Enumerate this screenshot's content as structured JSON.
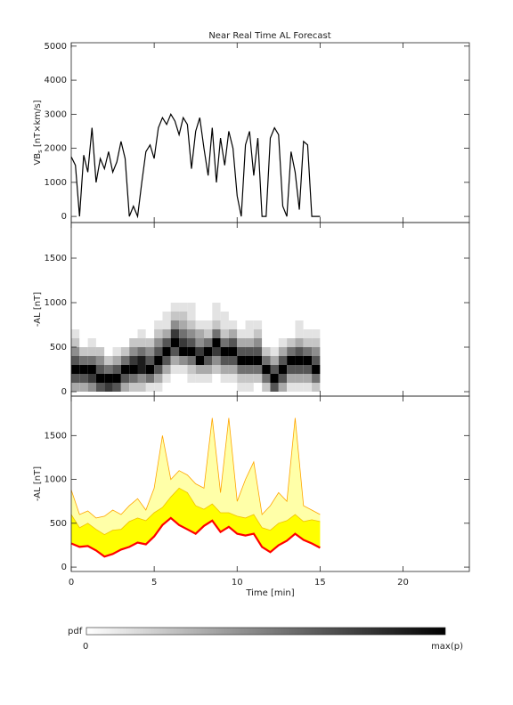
{
  "chart_data": [
    {
      "type": "line",
      "title": "Near Real Time AL Forecast",
      "ylabel": {
        "main": "VB",
        "sub": "s",
        "unit": " [nT×km/s]"
      },
      "xlim": [
        0,
        24
      ],
      "xticks": [
        0,
        5,
        10,
        15,
        20
      ],
      "ylim": [
        -180,
        5100
      ],
      "yticks": [
        0,
        1000,
        2000,
        3000,
        4000,
        5000
      ],
      "x": [
        0,
        0.25,
        0.5,
        0.75,
        1,
        1.25,
        1.5,
        1.75,
        2,
        2.25,
        2.5,
        2.75,
        3,
        3.25,
        3.5,
        3.75,
        4,
        4.25,
        4.5,
        4.75,
        5,
        5.25,
        5.5,
        5.75,
        6,
        6.25,
        6.5,
        6.75,
        7,
        7.25,
        7.5,
        7.75,
        8,
        8.25,
        8.5,
        8.75,
        9,
        9.25,
        9.5,
        9.75,
        10,
        10.25,
        10.5,
        10.75,
        11,
        11.25,
        11.5,
        11.75,
        12,
        12.25,
        12.5,
        12.75,
        13,
        13.25,
        13.5,
        13.75,
        14,
        14.25,
        14.5,
        14.75,
        15
      ],
      "series": [
        {
          "color": "#000000",
          "values": [
            1750,
            1500,
            0,
            1800,
            1300,
            2600,
            1000,
            1700,
            1400,
            1900,
            1300,
            1600,
            2200,
            1700,
            0,
            300,
            0,
            1000,
            1900,
            2100,
            1700,
            2600,
            2900,
            2700,
            3000,
            2800,
            2400,
            2900,
            2700,
            1400,
            2500,
            2900,
            2000,
            1200,
            2600,
            1000,
            2300,
            1500,
            2500,
            2000,
            600,
            0,
            2100,
            2500,
            1200,
            2300,
            0,
            0,
            2300,
            2600,
            2400,
            300,
            0,
            1900,
            1300,
            200,
            2200,
            2100,
            0,
            0,
            0
          ]
        }
      ]
    },
    {
      "type": "heatmap",
      "ylabel": "-AL [nT]",
      "xlim": [
        0,
        24
      ],
      "xticks": [
        0,
        5,
        10,
        15,
        20
      ],
      "ylim": [
        -50,
        1900
      ],
      "yticks": [
        0,
        500,
        1000,
        1500
      ],
      "xbins": [
        0,
        0.5,
        1,
        1.5,
        2,
        2.5,
        3,
        3.5,
        4,
        4.5,
        5,
        5.5,
        6,
        6.5,
        7,
        7.5,
        8,
        8.5,
        9,
        9.5,
        10,
        10.5,
        11,
        11.5,
        12,
        12.5,
        13,
        13.5,
        14,
        14.5,
        15
      ],
      "ybins": [
        0,
        100,
        200,
        300,
        400,
        500,
        600,
        700,
        800,
        900,
        1000
      ],
      "z": [
        [
          3,
          6,
          9,
          6,
          4,
          2,
          1,
          0,
          0,
          0
        ],
        [
          3,
          6,
          9,
          5,
          2,
          0,
          0,
          0,
          0,
          0
        ],
        [
          4,
          7,
          9,
          5,
          2,
          1,
          0,
          0,
          0,
          0
        ],
        [
          6,
          9,
          6,
          4,
          2,
          0,
          0,
          0,
          0,
          0
        ],
        [
          7,
          9,
          5,
          2,
          0,
          0,
          0,
          0,
          0,
          0
        ],
        [
          6,
          9,
          6,
          3,
          1,
          0,
          0,
          0,
          0,
          0
        ],
        [
          3,
          6,
          9,
          5,
          2,
          0,
          0,
          0,
          0,
          0
        ],
        [
          2,
          5,
          9,
          7,
          4,
          2,
          0,
          0,
          0,
          0
        ],
        [
          2,
          4,
          8,
          8,
          5,
          2,
          1,
          0,
          0,
          0
        ],
        [
          1,
          5,
          9,
          6,
          4,
          2,
          0,
          0,
          0,
          0
        ],
        [
          1,
          3,
          6,
          9,
          6,
          4,
          2,
          1,
          0,
          0
        ],
        [
          0,
          1,
          3,
          6,
          9,
          6,
          3,
          1,
          1,
          0
        ],
        [
          0,
          0,
          1,
          3,
          6,
          9,
          7,
          4,
          2,
          1
        ],
        [
          0,
          0,
          1,
          4,
          9,
          7,
          5,
          3,
          2,
          1
        ],
        [
          0,
          1,
          2,
          5,
          9,
          6,
          4,
          2,
          1,
          1
        ],
        [
          0,
          1,
          3,
          9,
          7,
          4,
          3,
          1,
          0,
          0
        ],
        [
          0,
          1,
          3,
          6,
          9,
          5,
          2,
          1,
          0,
          0
        ],
        [
          0,
          0,
          2,
          4,
          7,
          9,
          5,
          2,
          1,
          1
        ],
        [
          0,
          1,
          3,
          6,
          9,
          5,
          2,
          1,
          1,
          0
        ],
        [
          0,
          1,
          3,
          6,
          9,
          6,
          3,
          1,
          0,
          0
        ],
        [
          1,
          2,
          5,
          9,
          6,
          3,
          1,
          0,
          0,
          0
        ],
        [
          1,
          2,
          5,
          9,
          6,
          3,
          1,
          1,
          0,
          0
        ],
        [
          0,
          2,
          5,
          9,
          6,
          4,
          2,
          1,
          0,
          0
        ],
        [
          2,
          5,
          9,
          5,
          2,
          0,
          0,
          0,
          0,
          0
        ],
        [
          6,
          9,
          6,
          3,
          1,
          0,
          0,
          0,
          0,
          0
        ],
        [
          3,
          6,
          9,
          6,
          3,
          1,
          0,
          0,
          0,
          0
        ],
        [
          1,
          3,
          6,
          9,
          5,
          2,
          0,
          0,
          0,
          0
        ],
        [
          1,
          3,
          6,
          9,
          6,
          3,
          1,
          1,
          0,
          0
        ],
        [
          1,
          3,
          6,
          9,
          5,
          2,
          1,
          0,
          0,
          0
        ],
        [
          2,
          5,
          9,
          6,
          4,
          2,
          1,
          0,
          0,
          0
        ]
      ]
    },
    {
      "type": "band",
      "ylabel": "-AL [nT]",
      "xlabel": "Time [min]",
      "xlim": [
        0,
        24
      ],
      "xticks": [
        0,
        5,
        10,
        15,
        20
      ],
      "ylim": [
        -50,
        1950
      ],
      "yticks": [
        0,
        500,
        1000,
        1500
      ],
      "x": [
        0,
        0.5,
        1,
        1.5,
        2,
        2.5,
        3,
        3.5,
        4,
        4.5,
        5,
        5.5,
        6,
        6.5,
        7,
        7.5,
        8,
        8.5,
        9,
        9.5,
        10,
        10.5,
        11,
        11.5,
        12,
        12.5,
        13,
        13.5,
        14,
        14.5,
        15
      ],
      "series": [
        {
          "color": "#ff0000",
          "values": [
            270,
            230,
            240,
            190,
            120,
            150,
            200,
            230,
            280,
            260,
            350,
            480,
            560,
            480,
            430,
            380,
            470,
            530,
            400,
            460,
            380,
            360,
            380,
            230,
            170,
            250,
            300,
            380,
            310,
            270,
            220
          ]
        },
        {
          "color": "#ffff00",
          "line_color": "#f0c000",
          "values": [
            600,
            450,
            500,
            430,
            370,
            420,
            430,
            520,
            560,
            530,
            620,
            680,
            800,
            900,
            850,
            700,
            660,
            720,
            620,
            620,
            580,
            560,
            600,
            450,
            420,
            500,
            530,
            600,
            520,
            540,
            520
          ]
        },
        {
          "color": "#ffffa8",
          "line_color": "#ffa500",
          "values": [
            880,
            600,
            640,
            560,
            580,
            650,
            600,
            700,
            780,
            650,
            900,
            1500,
            1000,
            1100,
            1050,
            950,
            900,
            1700,
            850,
            1700,
            750,
            1000,
            1200,
            600,
            700,
            850,
            750,
            1700,
            700,
            650,
            600
          ]
        }
      ]
    }
  ],
  "colorbar": {
    "label": "pdf",
    "min_label": "0",
    "max_label": "max(p)"
  }
}
